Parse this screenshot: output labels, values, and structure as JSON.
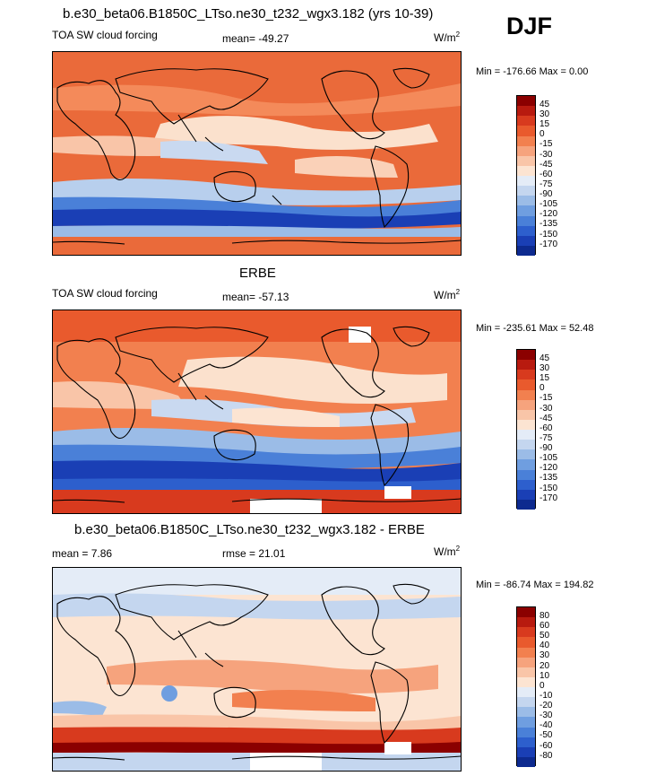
{
  "season": "DJF",
  "panels": [
    {
      "title": "b.e30_beta06.B1850C_LTso.ne30_t232_wgx3.182 (yrs 10-39)",
      "left_label": "TOA SW cloud forcing",
      "center_label": "mean= -49.27",
      "units_base": "W/m",
      "units_exp": "2",
      "minmax": "Min = -176.66 Max =   0.00",
      "levels": [
        "45",
        "30",
        "15",
        "0",
        "-15",
        "-30",
        "-45",
        "-60",
        "-75",
        "-90",
        "-105",
        "-120",
        "-135",
        "-150",
        "-170"
      ],
      "colors": [
        "#8b0000",
        "#b81a0f",
        "#d83a1e",
        "#e95a2d",
        "#f2804f",
        "#f6a37d",
        "#f9c5a8",
        "#fce4d2",
        "#e4ecf7",
        "#c4d6ef",
        "#9bbce7",
        "#6f9ee0",
        "#4a80d8",
        "#2d5fcd",
        "#1a3fb5",
        "#0d2a8f"
      ],
      "chart_data": {
        "type": "heatmap",
        "field": "TOA SW cloud forcing",
        "mean": -49.27,
        "min": -176.66,
        "max": 0.0,
        "contour_levels": [
          45,
          30,
          15,
          0,
          -15,
          -30,
          -45,
          -60,
          -75,
          -90,
          -105,
          -120,
          -135,
          -150,
          -170
        ]
      }
    },
    {
      "title": "ERBE",
      "left_label": "TOA SW cloud forcing",
      "center_label": "mean= -57.13",
      "units_base": "W/m",
      "units_exp": "2",
      "minmax": "Min = -235.61 Max =  52.48",
      "levels": [
        "45",
        "30",
        "15",
        "0",
        "-15",
        "-30",
        "-45",
        "-60",
        "-75",
        "-90",
        "-105",
        "-120",
        "-135",
        "-150",
        "-170"
      ],
      "colors": [
        "#8b0000",
        "#b81a0f",
        "#d83a1e",
        "#e95a2d",
        "#f2804f",
        "#f6a37d",
        "#f9c5a8",
        "#fce4d2",
        "#e4ecf7",
        "#c4d6ef",
        "#9bbce7",
        "#6f9ee0",
        "#4a80d8",
        "#2d5fcd",
        "#1a3fb5",
        "#0d2a8f"
      ],
      "chart_data": {
        "type": "heatmap",
        "field": "TOA SW cloud forcing",
        "mean": -57.13,
        "min": -235.61,
        "max": 52.48,
        "contour_levels": [
          45,
          30,
          15,
          0,
          -15,
          -30,
          -45,
          -60,
          -75,
          -90,
          -105,
          -120,
          -135,
          -150,
          -170
        ]
      }
    },
    {
      "title": "b.e30_beta06.B1850C_LTso.ne30_t232_wgx3.182 - ERBE",
      "left_label": "mean =   7.86",
      "center_label": "rmse =  21.01",
      "units_base": "W/m",
      "units_exp": "2",
      "minmax": "Min = -86.74 Max = 194.82",
      "levels": [
        "80",
        "60",
        "50",
        "40",
        "30",
        "20",
        "10",
        "0",
        "-10",
        "-20",
        "-30",
        "-40",
        "-50",
        "-60",
        "-80"
      ],
      "colors": [
        "#8b0000",
        "#b81a0f",
        "#d83a1e",
        "#e95a2d",
        "#f2804f",
        "#f6a37d",
        "#f9c5a8",
        "#fce4d2",
        "#e4ecf7",
        "#c4d6ef",
        "#9bbce7",
        "#6f9ee0",
        "#4a80d8",
        "#2d5fcd",
        "#1a3fb5",
        "#0d2a8f"
      ],
      "chart_data": {
        "type": "heatmap",
        "field": "model minus ERBE difference",
        "mean": 7.86,
        "rmse": 21.01,
        "min": -86.74,
        "max": 194.82,
        "contour_levels": [
          80,
          60,
          50,
          40,
          30,
          20,
          10,
          0,
          -10,
          -20,
          -30,
          -40,
          -50,
          -60,
          -80
        ]
      }
    }
  ]
}
